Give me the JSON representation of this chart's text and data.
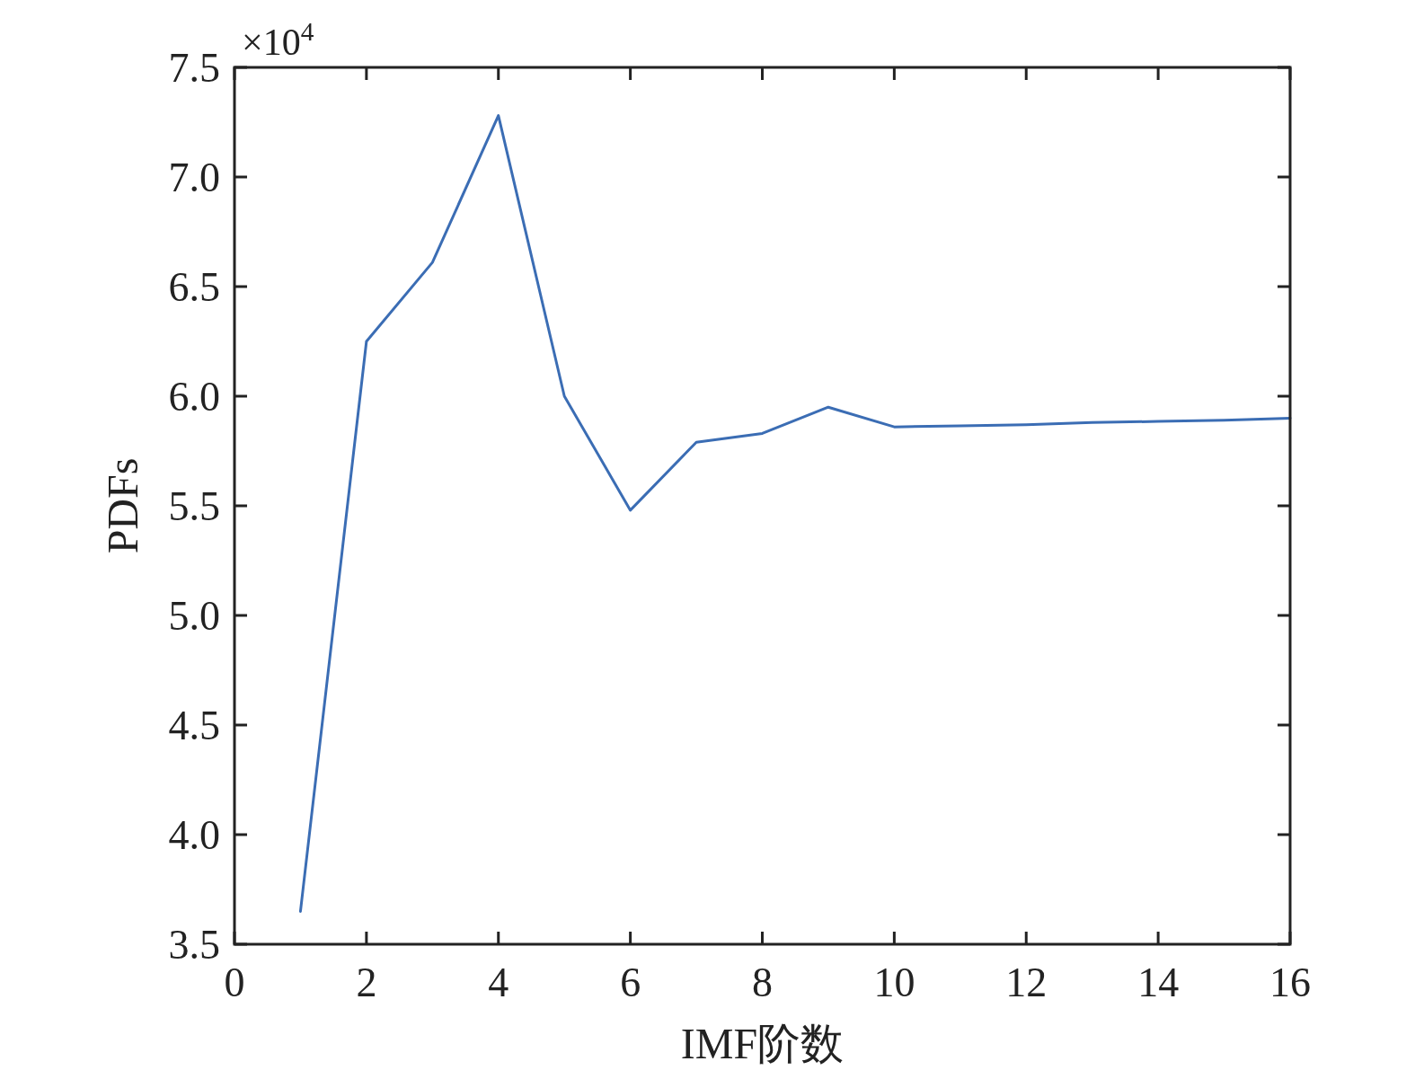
{
  "chart_data": {
    "type": "line",
    "xlabel": "IMF阶数",
    "ylabel": "PDFs",
    "annotations": [
      "×10$^{4}$"
    ],
    "x": [
      1,
      2,
      3,
      4,
      5,
      6,
      7,
      8,
      9,
      10,
      11,
      12,
      13,
      14,
      15,
      16
    ],
    "values": [
      3.65,
      6.25,
      6.61,
      7.28,
      6.0,
      5.48,
      5.79,
      5.83,
      5.95,
      5.86,
      5.865,
      5.87,
      5.88,
      5.885,
      5.89,
      5.9
    ],
    "color": "#3b6db4",
    "xlim": [
      0,
      16
    ],
    "ylim": [
      3.5,
      7.5
    ],
    "xticks": [
      0,
      2,
      4,
      6,
      8,
      10,
      12,
      14,
      16
    ],
    "yticks": [
      3.5,
      {
        "value": 4,
        "label": "4.0"
      },
      4.5,
      {
        "value": 5,
        "label": "5.0"
      },
      5.5,
      {
        "value": 6,
        "label": "6.0"
      },
      6.5,
      {
        "value": 7,
        "label": "7.0"
      },
      7.5
    ]
  }
}
